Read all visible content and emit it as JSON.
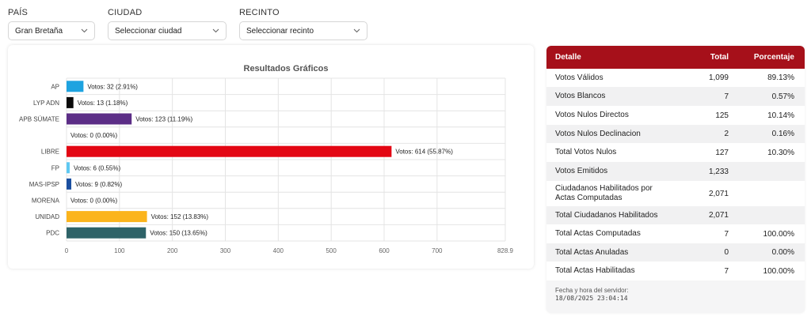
{
  "filters": [
    {
      "label": "PAÍS",
      "value": "Gran Bretaña"
    },
    {
      "label": "CIUDAD",
      "value": "Seleccionar ciudad"
    },
    {
      "label": "RECINTO",
      "value": "Seleccionar recinto"
    }
  ],
  "chart_data": {
    "type": "bar",
    "orientation": "horizontal",
    "title": "Resultados Gráficos",
    "categories": [
      "AP",
      "LYP ADN",
      "APB SÚMATE",
      "",
      "LIBRE",
      "FP",
      "MAS-IPSP",
      "MORENA",
      "UNIDAD",
      "PDC"
    ],
    "values": [
      32,
      13,
      123,
      0,
      614,
      6,
      9,
      0,
      152,
      150
    ],
    "labels": [
      "Votos: 32 (2.91%)",
      "Votos: 13 (1.18%)",
      "Votos: 123 (11.19%)",
      "Votos: 0 (0.00%)",
      "Votos: 614 (55.87%)",
      "Votos: 6 (0.55%)",
      "Votos: 9 (0.82%)",
      "Votos: 0 (0.00%)",
      "Votos: 152 (13.83%)",
      "Votos: 150 (13.65%)"
    ],
    "colors": [
      "#1ea3e0",
      "#0a0a0a",
      "#5b2d86",
      "#cccccc",
      "#e30613",
      "#5ec8f2",
      "#1b4fa0",
      "#8a1c1c",
      "#fbb41c",
      "#2e6368"
    ],
    "xticks": [
      0,
      100,
      200,
      300,
      400,
      500,
      600,
      700,
      828.9
    ],
    "xlim": [
      0,
      828.9
    ],
    "grid": true
  },
  "table": {
    "headers": [
      "Detalle",
      "Total",
      "Porcentaje"
    ],
    "rows": [
      {
        "label": "Votos Válidos",
        "total": "1,099",
        "pct": "89.13%"
      },
      {
        "label": "Votos Blancos",
        "total": "7",
        "pct": "0.57%"
      },
      {
        "label": "Votos Nulos Directos",
        "total": "125",
        "pct": "10.14%"
      },
      {
        "label": "Votos Nulos Declinacion",
        "total": "2",
        "pct": "0.16%"
      },
      {
        "label": "Total Votos Nulos",
        "total": "127",
        "pct": "10.30%"
      },
      {
        "label": "Votos Emitidos",
        "total": "1,233",
        "pct": ""
      },
      {
        "label": "Ciudadanos Habilitados por Actas Computadas",
        "total": "2,071",
        "pct": ""
      },
      {
        "label": "Total Ciudadanos Habilitados",
        "total": "2,071",
        "pct": ""
      },
      {
        "label": "Total Actas Computadas",
        "total": "7",
        "pct": "100.00%"
      },
      {
        "label": "Total Actas Anuladas",
        "total": "0",
        "pct": "0.00%"
      },
      {
        "label": "Total Actas Habilitadas",
        "total": "7",
        "pct": "100.00%"
      }
    ],
    "footer_label": "Fecha y hora del servidor:",
    "footer_time": "18/08/2025 23:04:14"
  }
}
